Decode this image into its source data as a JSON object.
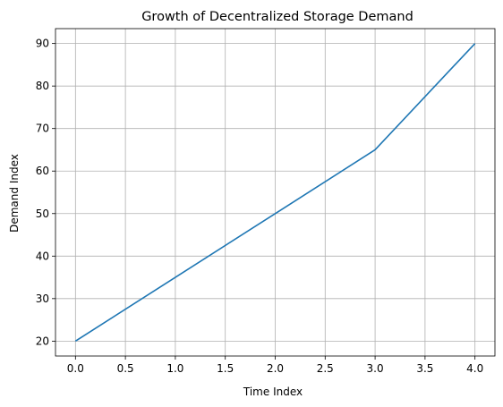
{
  "chart_data": {
    "type": "line",
    "title": "Growth of Decentralized Storage Demand",
    "xlabel": "Time Index",
    "ylabel": "Demand Index",
    "x": [
      0,
      1,
      2,
      3,
      4
    ],
    "series": [
      {
        "values": [
          20,
          35,
          50,
          65,
          90
        ],
        "color": "#1f77b4"
      }
    ],
    "xlim": [
      -0.2,
      4.2
    ],
    "ylim": [
      16.5,
      93.5
    ],
    "xticks": [
      0.0,
      0.5,
      1.0,
      1.5,
      2.0,
      2.5,
      3.0,
      3.5,
      4.0
    ],
    "xtick_labels": [
      "0.0",
      "0.5",
      "1.0",
      "1.5",
      "2.0",
      "2.5",
      "3.0",
      "3.5",
      "4.0"
    ],
    "yticks": [
      20,
      30,
      40,
      50,
      60,
      70,
      80,
      90
    ],
    "ytick_labels": [
      "20",
      "30",
      "40",
      "50",
      "60",
      "70",
      "80",
      "90"
    ],
    "grid": true
  }
}
